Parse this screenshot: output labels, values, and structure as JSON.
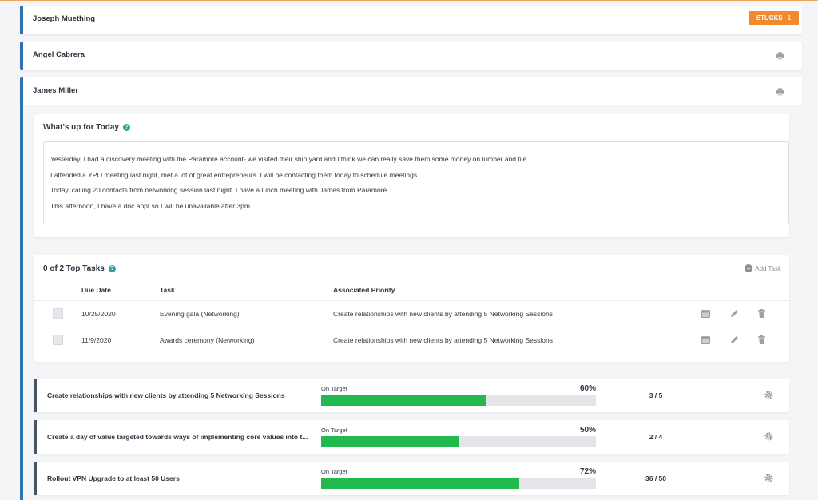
{
  "people": [
    {
      "name": "Joseph Muething"
    },
    {
      "name": "Angel Cabrera"
    },
    {
      "name": "James Miller"
    }
  ],
  "stucks": {
    "label": "STUCKS",
    "count": "1"
  },
  "today": {
    "title": "What's up for Today",
    "lines": [
      "Yesterday, I had a discovery meeting with the Paramore account- we visited their ship yard and I think we can really save them some money on lumber and tile.",
      "I attended a YPO meeting last night, met a lot of great entrepreneurs. I will be contacting them today to schedule meetings.",
      "Today, calling 20 contacts from networking session last night. I have a lunch meeting with James from Paramore.",
      "This afternoon, I have a doc appt so I will be unavailable after 3pm."
    ]
  },
  "tasks": {
    "title": "0 of 2 Top Tasks",
    "add_label": "Add Task",
    "columns": {
      "due": "Due Date",
      "task": "Task",
      "priority": "Associated Priority"
    },
    "rows": [
      {
        "due": "10/25/2020",
        "task": "Evening gala (Networking)",
        "priority": "Create relationships with new clients by attending 5 Networking Sessions"
      },
      {
        "due": "11/9/2020",
        "task": "Awards ceremony (Networking)",
        "priority": "Create relationships with new clients by attending 5 Networking Sessions"
      }
    ]
  },
  "priorities": [
    {
      "title": "Create relationships with new clients by attending 5 Networking Sessions",
      "status": "On Target",
      "percent_label": "60%",
      "progress": 0.6,
      "fraction": "3 / 5"
    },
    {
      "title": "Create a day of value targeted towards ways of implementing core values into t...",
      "status": "On Target",
      "percent_label": "50%",
      "progress": 0.5,
      "fraction": "2 / 4"
    },
    {
      "title": "Rollout VPN Upgrade to at least 50 Users",
      "status": "On Target",
      "percent_label": "72%",
      "progress": 0.72,
      "fraction": "36 / 50"
    }
  ],
  "colors": {
    "accent": "#2f72b0",
    "progress": "#22b94e",
    "badge": "#f08a2c",
    "help": "#2aa3a0"
  }
}
